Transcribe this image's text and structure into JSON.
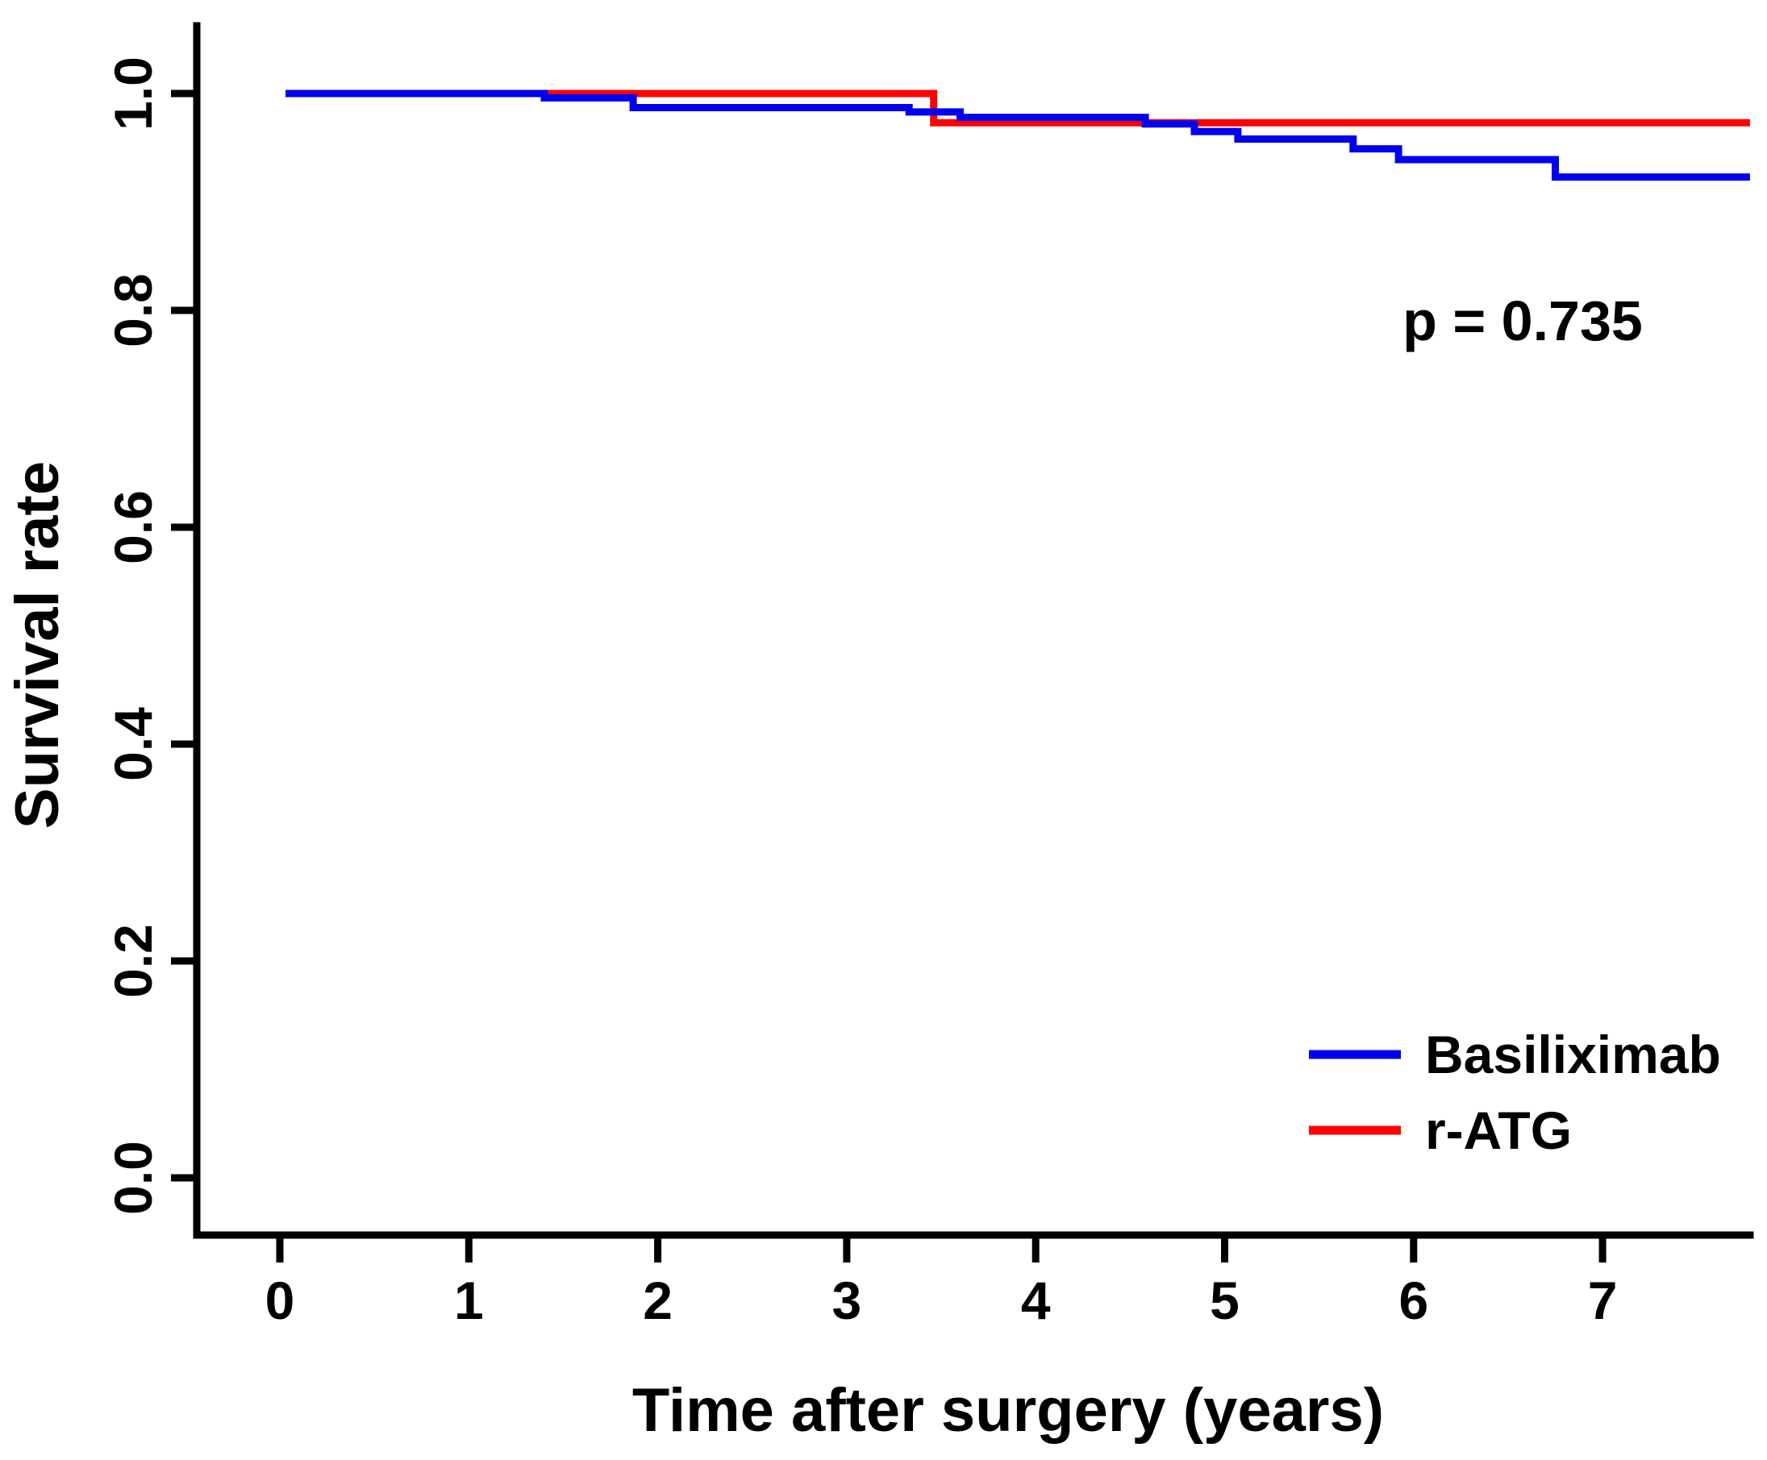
{
  "figure": {
    "background": "#ffffff",
    "text_color": "#000000"
  },
  "annotation": {
    "text": "p = 0.735"
  },
  "chart_data": {
    "type": "line",
    "subtype": "kaplan-meier-step",
    "title": "",
    "xlabel": "Time after surgery (years)",
    "ylabel": "Survival rate",
    "xlim": [
      -0.44,
      7.78
    ],
    "ylim": [
      -0.06,
      1.06
    ],
    "x_ticks": [
      "0",
      "1",
      "2",
      "3",
      "4",
      "5",
      "6",
      "7"
    ],
    "y_ticks": [
      "0.0",
      "0.2",
      "0.4",
      "0.6",
      "0.8",
      "1.0"
    ],
    "grid": false,
    "legend_position": "bottom-right",
    "annotation": "p = 0.735",
    "series": [
      {
        "name": "r-ATG",
        "color": "#FF0000",
        "draw_order": 1,
        "steps": [
          [
            0.03,
            1.0
          ],
          [
            3.46,
            0.973
          ],
          [
            7.78,
            0.973
          ]
        ]
      },
      {
        "name": "Basiliximab",
        "color": "#0000EE",
        "draw_order": 2,
        "steps": [
          [
            0.03,
            1.0
          ],
          [
            1.4,
            0.996
          ],
          [
            1.87,
            0.987
          ],
          [
            3.33,
            0.983
          ],
          [
            3.6,
            0.978
          ],
          [
            4.58,
            0.972
          ],
          [
            4.84,
            0.965
          ],
          [
            5.07,
            0.958
          ],
          [
            5.68,
            0.949
          ],
          [
            5.92,
            0.939
          ],
          [
            6.75,
            0.923
          ],
          [
            7.78,
            0.923
          ]
        ]
      }
    ]
  },
  "legend": {
    "items": [
      {
        "label": "Basiliximab",
        "color": "#0000EE"
      },
      {
        "label": "r-ATG",
        "color": "#FF0000"
      }
    ]
  }
}
